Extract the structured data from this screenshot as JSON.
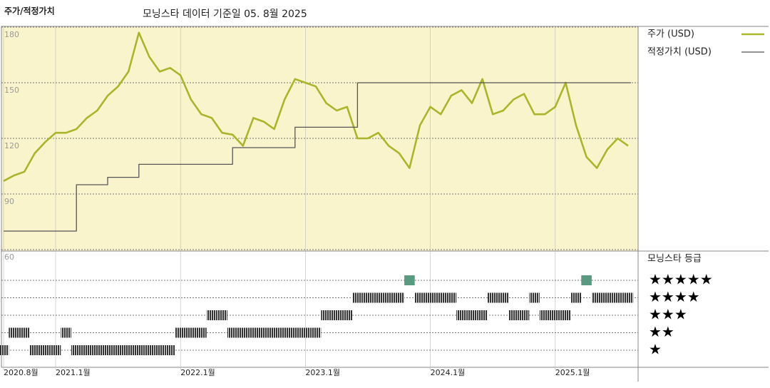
{
  "chart_data": {
    "type": "line",
    "title": "주가/적정가치",
    "subtitle": "모닝스타 데이터 기준일 05. 8월 2025",
    "x": [
      "2020-08",
      "2020-09",
      "2020-10",
      "2020-11",
      "2020-12",
      "2021-01",
      "2021-02",
      "2021-03",
      "2021-04",
      "2021-05",
      "2021-06",
      "2021-07",
      "2021-08",
      "2021-09",
      "2021-10",
      "2021-11",
      "2021-12",
      "2022-01",
      "2022-02",
      "2022-03",
      "2022-04",
      "2022-05",
      "2022-06",
      "2022-07",
      "2022-08",
      "2022-09",
      "2022-10",
      "2022-11",
      "2022-12",
      "2023-01",
      "2023-02",
      "2023-03",
      "2023-04",
      "2023-05",
      "2023-06",
      "2023-07",
      "2023-08",
      "2023-09",
      "2023-10",
      "2023-11",
      "2023-12",
      "2024-01",
      "2024-02",
      "2024-03",
      "2024-04",
      "2024-05",
      "2024-06",
      "2024-07",
      "2024-08",
      "2024-09",
      "2024-10",
      "2024-11",
      "2024-12",
      "2025-01",
      "2025-02",
      "2025-03",
      "2025-04",
      "2025-05",
      "2025-06",
      "2025-07",
      "2025-08"
    ],
    "series": [
      {
        "name": "주가 (USD)",
        "color": "#a9b52b",
        "values": [
          97,
          100,
          102,
          112,
          118,
          123,
          123,
          125,
          131,
          135,
          143,
          148,
          156,
          177,
          164,
          156,
          158,
          154,
          141,
          133,
          131,
          123,
          122,
          116,
          131,
          129,
          125,
          141,
          152,
          150,
          148,
          139,
          135,
          137,
          120,
          120,
          123,
          116,
          112,
          104,
          127,
          137,
          133,
          143,
          146,
          139,
          152,
          133,
          135,
          141,
          144,
          133,
          133,
          137,
          150,
          127,
          110,
          104,
          114,
          120,
          116
        ]
      },
      {
        "name": "적정가치 (USD)",
        "color": "#555555",
        "step": true,
        "values": [
          70,
          70,
          70,
          70,
          70,
          70,
          70,
          95,
          95,
          95,
          99,
          99,
          99,
          106,
          106,
          106,
          106,
          106,
          106,
          106,
          106,
          106,
          115,
          115,
          115,
          115,
          115,
          115,
          126,
          126,
          126,
          126,
          126,
          126,
          150,
          150,
          150,
          150,
          150,
          150,
          150,
          150,
          150,
          150,
          150,
          150,
          150,
          150,
          150,
          150,
          150,
          150,
          150,
          150,
          150,
          150,
          150,
          150,
          150,
          150,
          150
        ]
      }
    ],
    "ylim": [
      60,
      180
    ],
    "yticks": [
      60,
      90,
      120,
      150,
      180
    ],
    "xticks": [
      {
        "value": "2020-08",
        "label": "2020.8월"
      },
      {
        "value": "2021-01",
        "label": "2021.1월"
      },
      {
        "value": "2022-01",
        "label": "2022.1월"
      },
      {
        "value": "2023-01",
        "label": "2023.1월"
      },
      {
        "value": "2024-01",
        "label": "2024.1월"
      },
      {
        "value": "2025-01",
        "label": "2025.1월"
      }
    ],
    "grid": true,
    "background": "#faf4cc",
    "rating": {
      "name": "모닝스타 등급",
      "color": "#333333",
      "top_color": "#5a9a80",
      "values": [
        1,
        2,
        2,
        1,
        1,
        1,
        2,
        1,
        1,
        1,
        1,
        1,
        1,
        1,
        1,
        1,
        1,
        2,
        2,
        2,
        3,
        3,
        2,
        2,
        2,
        2,
        2,
        2,
        2,
        2,
        2,
        3,
        3,
        3,
        4,
        4,
        4,
        4,
        4,
        5,
        4,
        4,
        4,
        4,
        3,
        3,
        3,
        4,
        4,
        3,
        3,
        4,
        3,
        3,
        3,
        4,
        5,
        4,
        4,
        4,
        4
      ],
      "levels": [
        {
          "value": 5,
          "label": "★★★★★"
        },
        {
          "value": 4,
          "label": "★★★★"
        },
        {
          "value": 3,
          "label": "★★★"
        },
        {
          "value": 2,
          "label": "★★"
        },
        {
          "value": 1,
          "label": "★"
        }
      ]
    }
  }
}
